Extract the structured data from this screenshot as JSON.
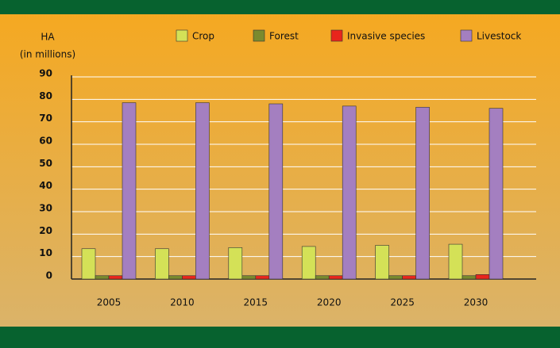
{
  "chart_data": {
    "type": "bar",
    "y_label_lines": [
      "HA",
      "(in millions)"
    ],
    "categories": [
      "2005",
      "2010",
      "2015",
      "2020",
      "2025",
      "2030"
    ],
    "series": [
      {
        "name": "Crop",
        "color": "#d4e157",
        "values": [
          13.5,
          13.5,
          14,
          14.5,
          15,
          15.5
        ]
      },
      {
        "name": "Forest",
        "color": "#7a8a2e",
        "values": [
          1.5,
          1.5,
          1.5,
          1.5,
          1.5,
          1.5
        ]
      },
      {
        "name": "Invasive species",
        "color": "#e8261c",
        "values": [
          1.5,
          1.5,
          1.5,
          1.5,
          1.5,
          2
        ]
      },
      {
        "name": "Livestock",
        "color": "#a47fc0",
        "values": [
          78.5,
          78.5,
          78,
          77,
          76.5,
          76
        ]
      }
    ],
    "ylim": [
      0,
      90
    ],
    "yticks": [
      0,
      10,
      20,
      30,
      40,
      50,
      60,
      70,
      80,
      90
    ],
    "grid": true
  }
}
